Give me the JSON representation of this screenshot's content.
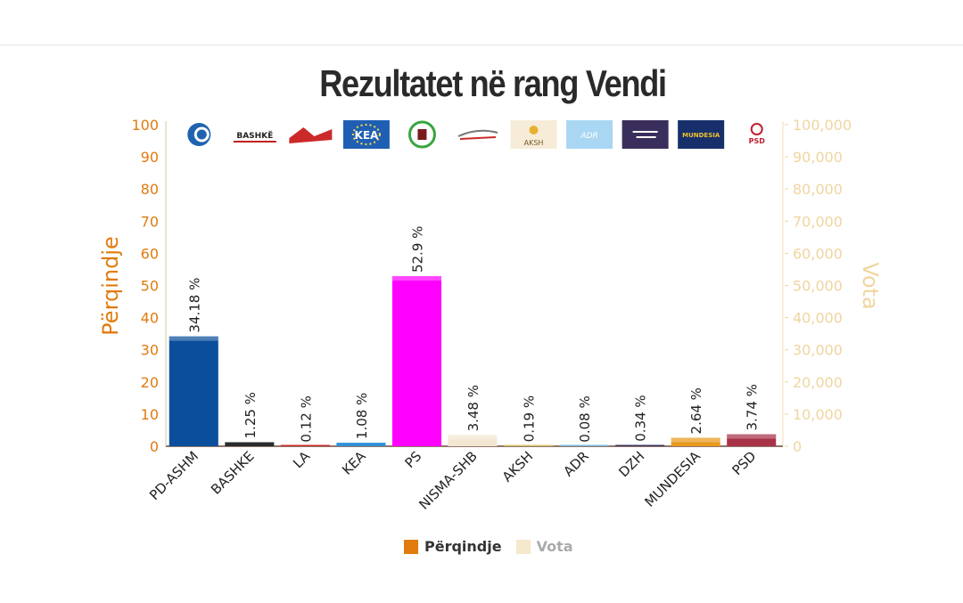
{
  "chart_data": {
    "type": "bar",
    "title": "Rezultatet në rang Vendi",
    "categories": [
      "PD-ASHM",
      "BASHKE",
      "LA",
      "KEA",
      "PS",
      "NISMA-SHB",
      "AKSH",
      "ADR",
      "DZH",
      "MUNDESIA",
      "PSD"
    ],
    "values": [
      34.18,
      1.25,
      0.12,
      1.08,
      52.9,
      3.48,
      0.19,
      0.08,
      0.34,
      2.64,
      3.74
    ],
    "data_labels": [
      "34.18 %",
      "1.25 %",
      "0.12 %",
      "1.08 %",
      "52.9 %",
      "3.48 %",
      "0.19 %",
      "0.08 %",
      "0.34 %",
      "2.64 %",
      "3.74 %"
    ],
    "bar_colors": [
      "#0b4f9c",
      "#2b2b2b",
      "#cc2a2a",
      "#2f8fd6",
      "#ff00ff",
      "#f2e8d2",
      "#d8c070",
      "#7ab8e0",
      "#3a3358",
      "#e89a1e",
      "#a83248"
    ],
    "ylabel": "Përqindje",
    "ylabel_right": "Vota",
    "ylim": [
      0,
      100
    ],
    "ylim_right": [
      0,
      100000
    ],
    "yticks": [
      "0",
      "10",
      "20",
      "30",
      "40",
      "50",
      "60",
      "70",
      "80",
      "90",
      "100"
    ],
    "yticks_right": [
      "0",
      "10,000",
      "20,000",
      "30,000",
      "40,000",
      "50,000",
      "60,000",
      "70,000",
      "80,000",
      "90,000",
      "100,000"
    ],
    "logo_text": [
      "BASHKË",
      "KEA",
      "AKSH",
      "ADR",
      "MUNDESIA",
      "PSD"
    ],
    "legend": [
      "Përqindje",
      "Vota"
    ],
    "legend_colors": [
      "#e07b0e",
      "#f5e8cc"
    ],
    "axis_color_left": "#e07b0e",
    "axis_color_right": "#f0d5a0",
    "legend_position": "bottom"
  }
}
